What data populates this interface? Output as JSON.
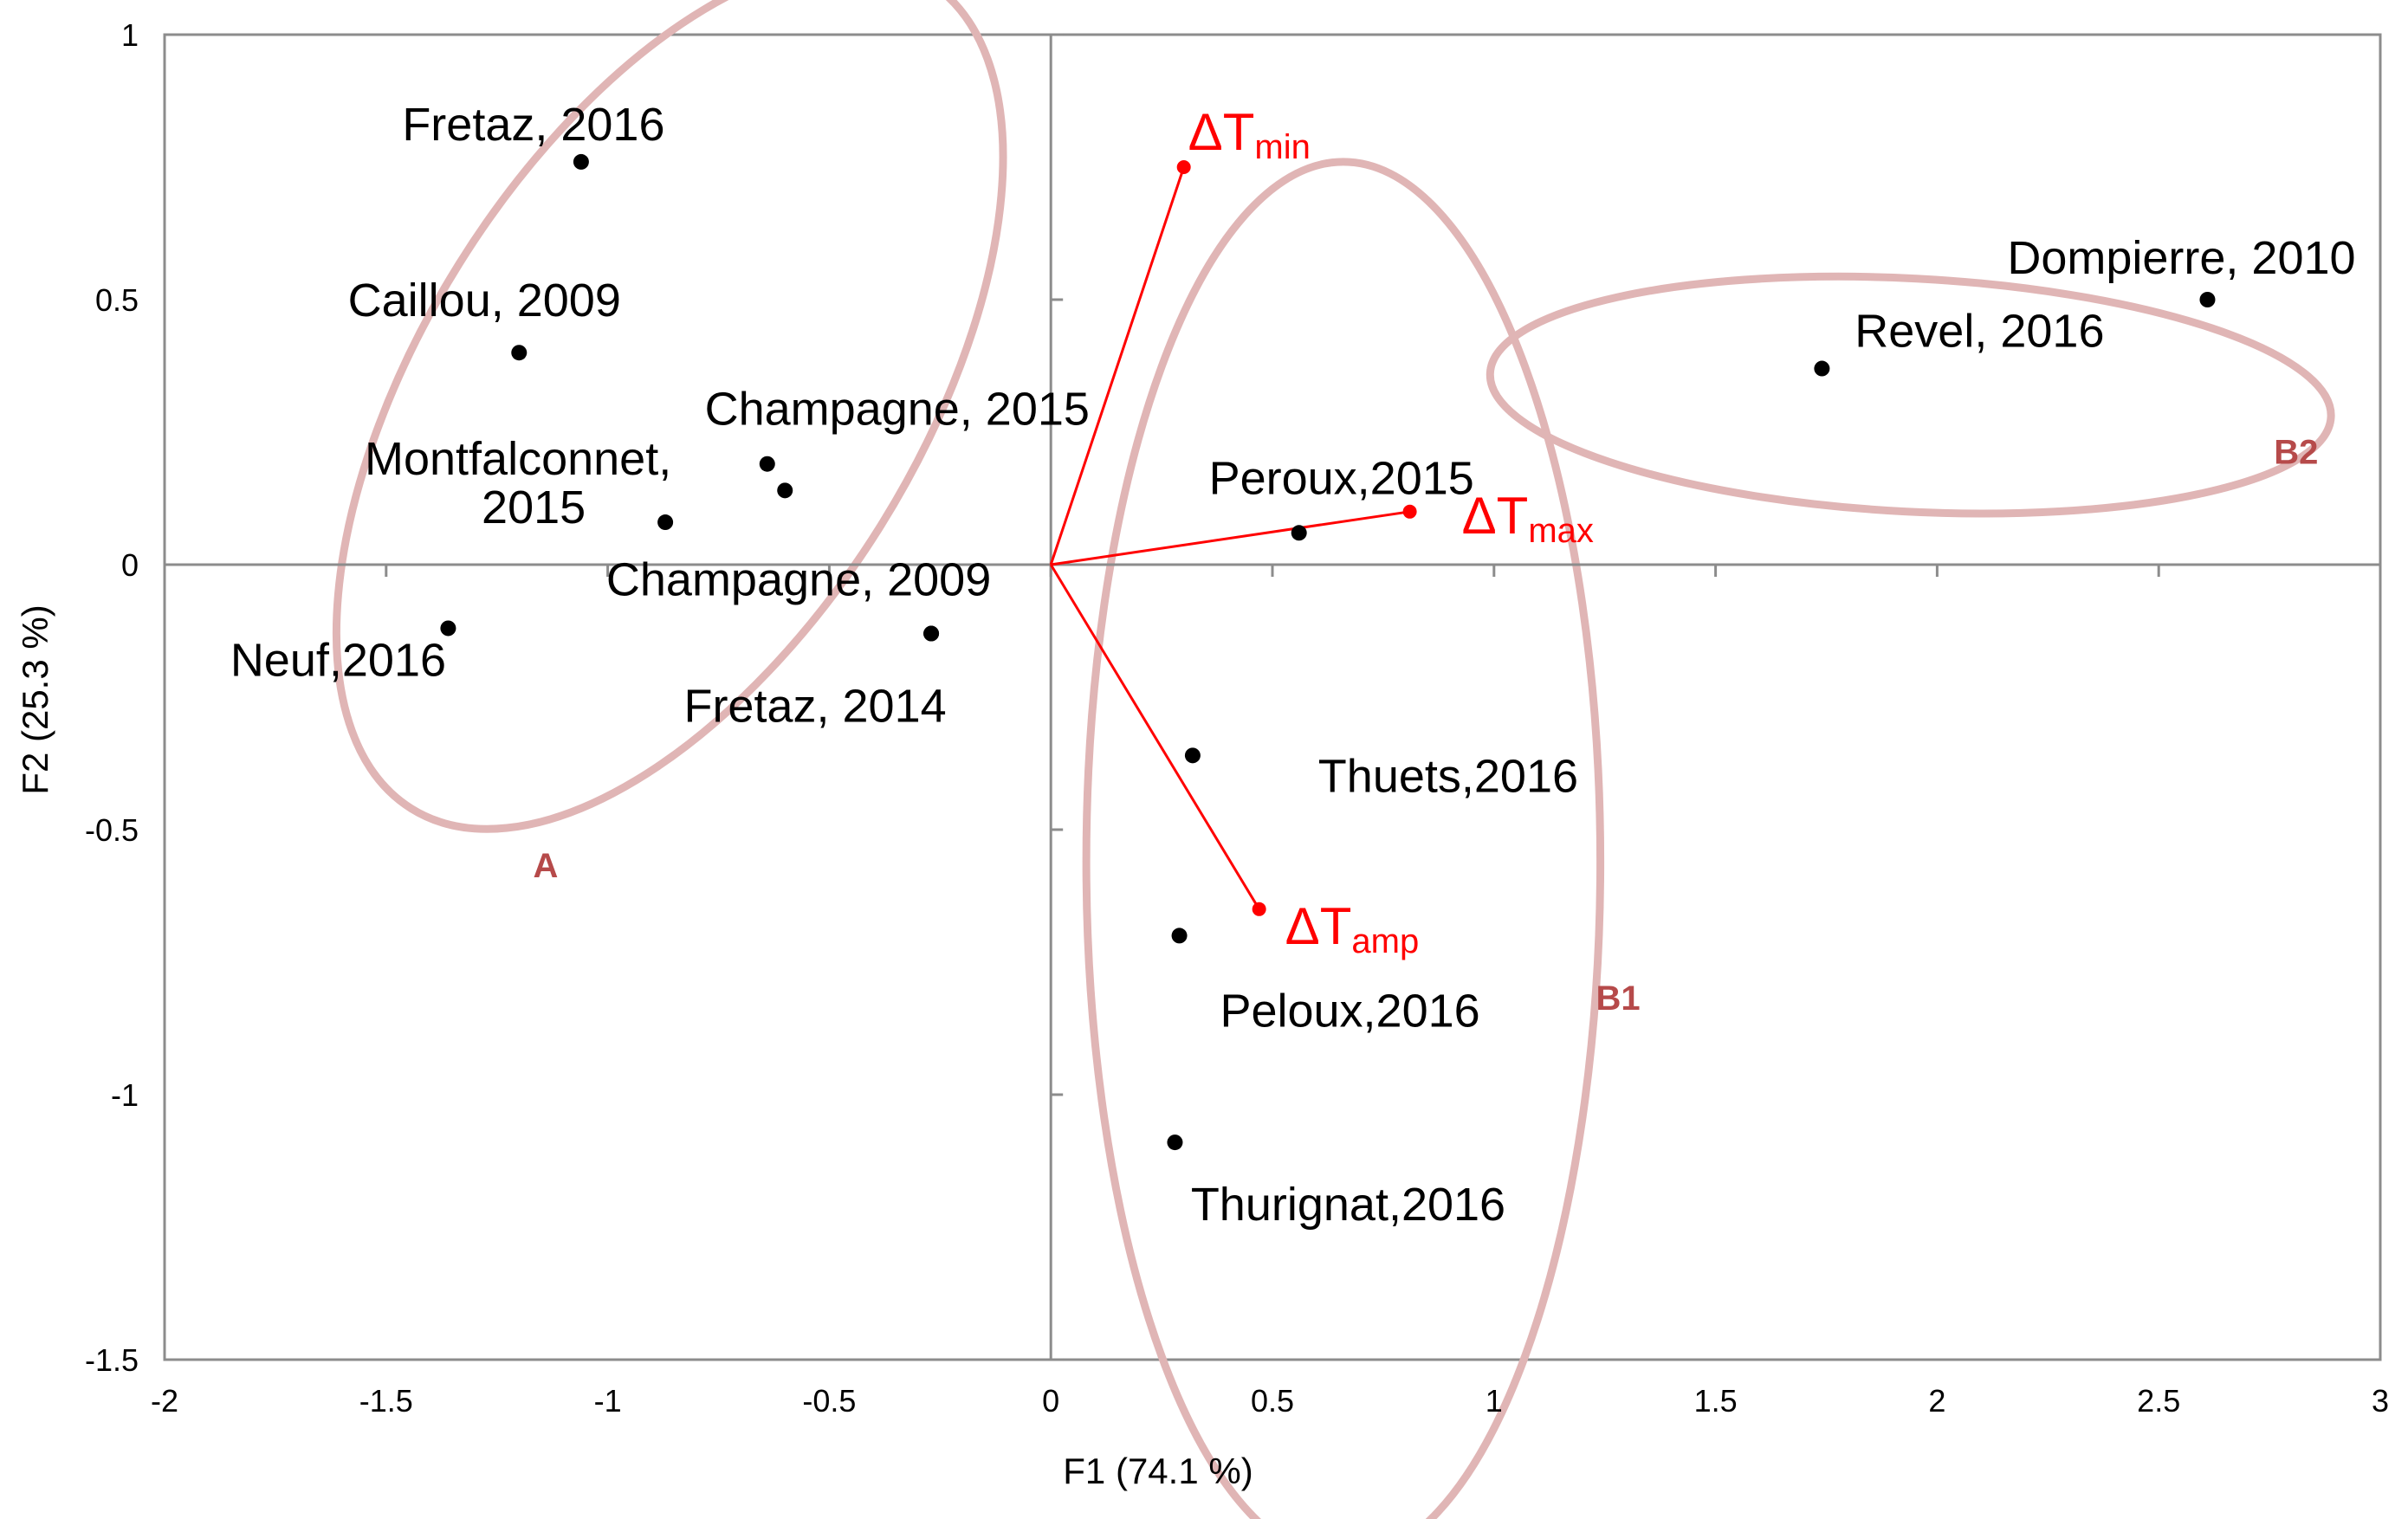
{
  "chart_data": {
    "type": "scatter",
    "title": "",
    "xlabel": "F1 (74.1 %)",
    "ylabel": "F2 (25.3 %)",
    "xlim": [
      -2,
      3
    ],
    "ylim": [
      -1.5,
      1
    ],
    "xticks": [
      -2,
      -1.5,
      -1,
      -0.5,
      0,
      0.5,
      1,
      1.5,
      2,
      2.5,
      3
    ],
    "yticks": [
      -1.5,
      -1,
      -0.5,
      0,
      0.5,
      1
    ],
    "grid": false,
    "colors": {
      "points": "#000000",
      "vectors": "#ff0000",
      "ellipses": "#e0b5b5",
      "group_labels": "#b64a4a"
    },
    "points": [
      {
        "label": "Fretaz,  2016",
        "x": -1.06,
        "y": 0.76
      },
      {
        "label": "Caillou, 2009",
        "x": -1.2,
        "y": 0.4
      },
      {
        "label": "Champagne, 2015",
        "x": -0.64,
        "y": 0.19
      },
      {
        "label": "",
        "x": -0.6,
        "y": 0.14
      },
      {
        "label": "Montfalconnet,",
        "label2": "2015",
        "x": -0.87,
        "y": 0.08
      },
      {
        "label": "Champagne, 2009",
        "x": -0.27,
        "y": -0.13
      },
      {
        "label": "Neuf,2016",
        "x": -1.36,
        "y": -0.12
      },
      {
        "label": "Fretaz,  2014",
        "x": -0.27,
        "y": -0.13
      },
      {
        "label": "Peroux,2015",
        "x": 0.56,
        "y": 0.06
      },
      {
        "label": "Thuets,2016",
        "x": 0.32,
        "y": -0.36
      },
      {
        "label": "Peloux,2016",
        "x": 0.29,
        "y": -0.7
      },
      {
        "label": "Thurignat,2016",
        "x": 0.28,
        "y": -1.09
      },
      {
        "label": "Revel, 2016",
        "x": 1.74,
        "y": 0.37
      },
      {
        "label": "Dompierre, 2010",
        "x": 2.61,
        "y": 0.5
      }
    ],
    "vectors": [
      {
        "label": "ΔT",
        "sub": "min",
        "x": 0.3,
        "y": 0.75
      },
      {
        "label": "ΔT",
        "sub": "max",
        "x": 0.81,
        "y": 0.1
      },
      {
        "label": "ΔT",
        "sub": "amp",
        "x": 0.47,
        "y": -0.65
      }
    ],
    "groups": [
      {
        "label": "A",
        "cx": -0.86,
        "cy": 0.32,
        "rx": 0.56,
        "ry": 0.92,
        "rot": 32,
        "lx": -1.14,
        "ly": -0.59
      },
      {
        "label": "B1",
        "cx": 0.66,
        "cy": -0.56,
        "rx": 0.58,
        "ry": 1.32,
        "rot": 0,
        "lx": 1.28,
        "ly": -0.84
      },
      {
        "label": "B2",
        "cx": 1.94,
        "cy": 0.32,
        "rx": 0.95,
        "ry": 0.22,
        "rot": 3,
        "lx": 2.81,
        "ly": 0.19
      }
    ]
  }
}
